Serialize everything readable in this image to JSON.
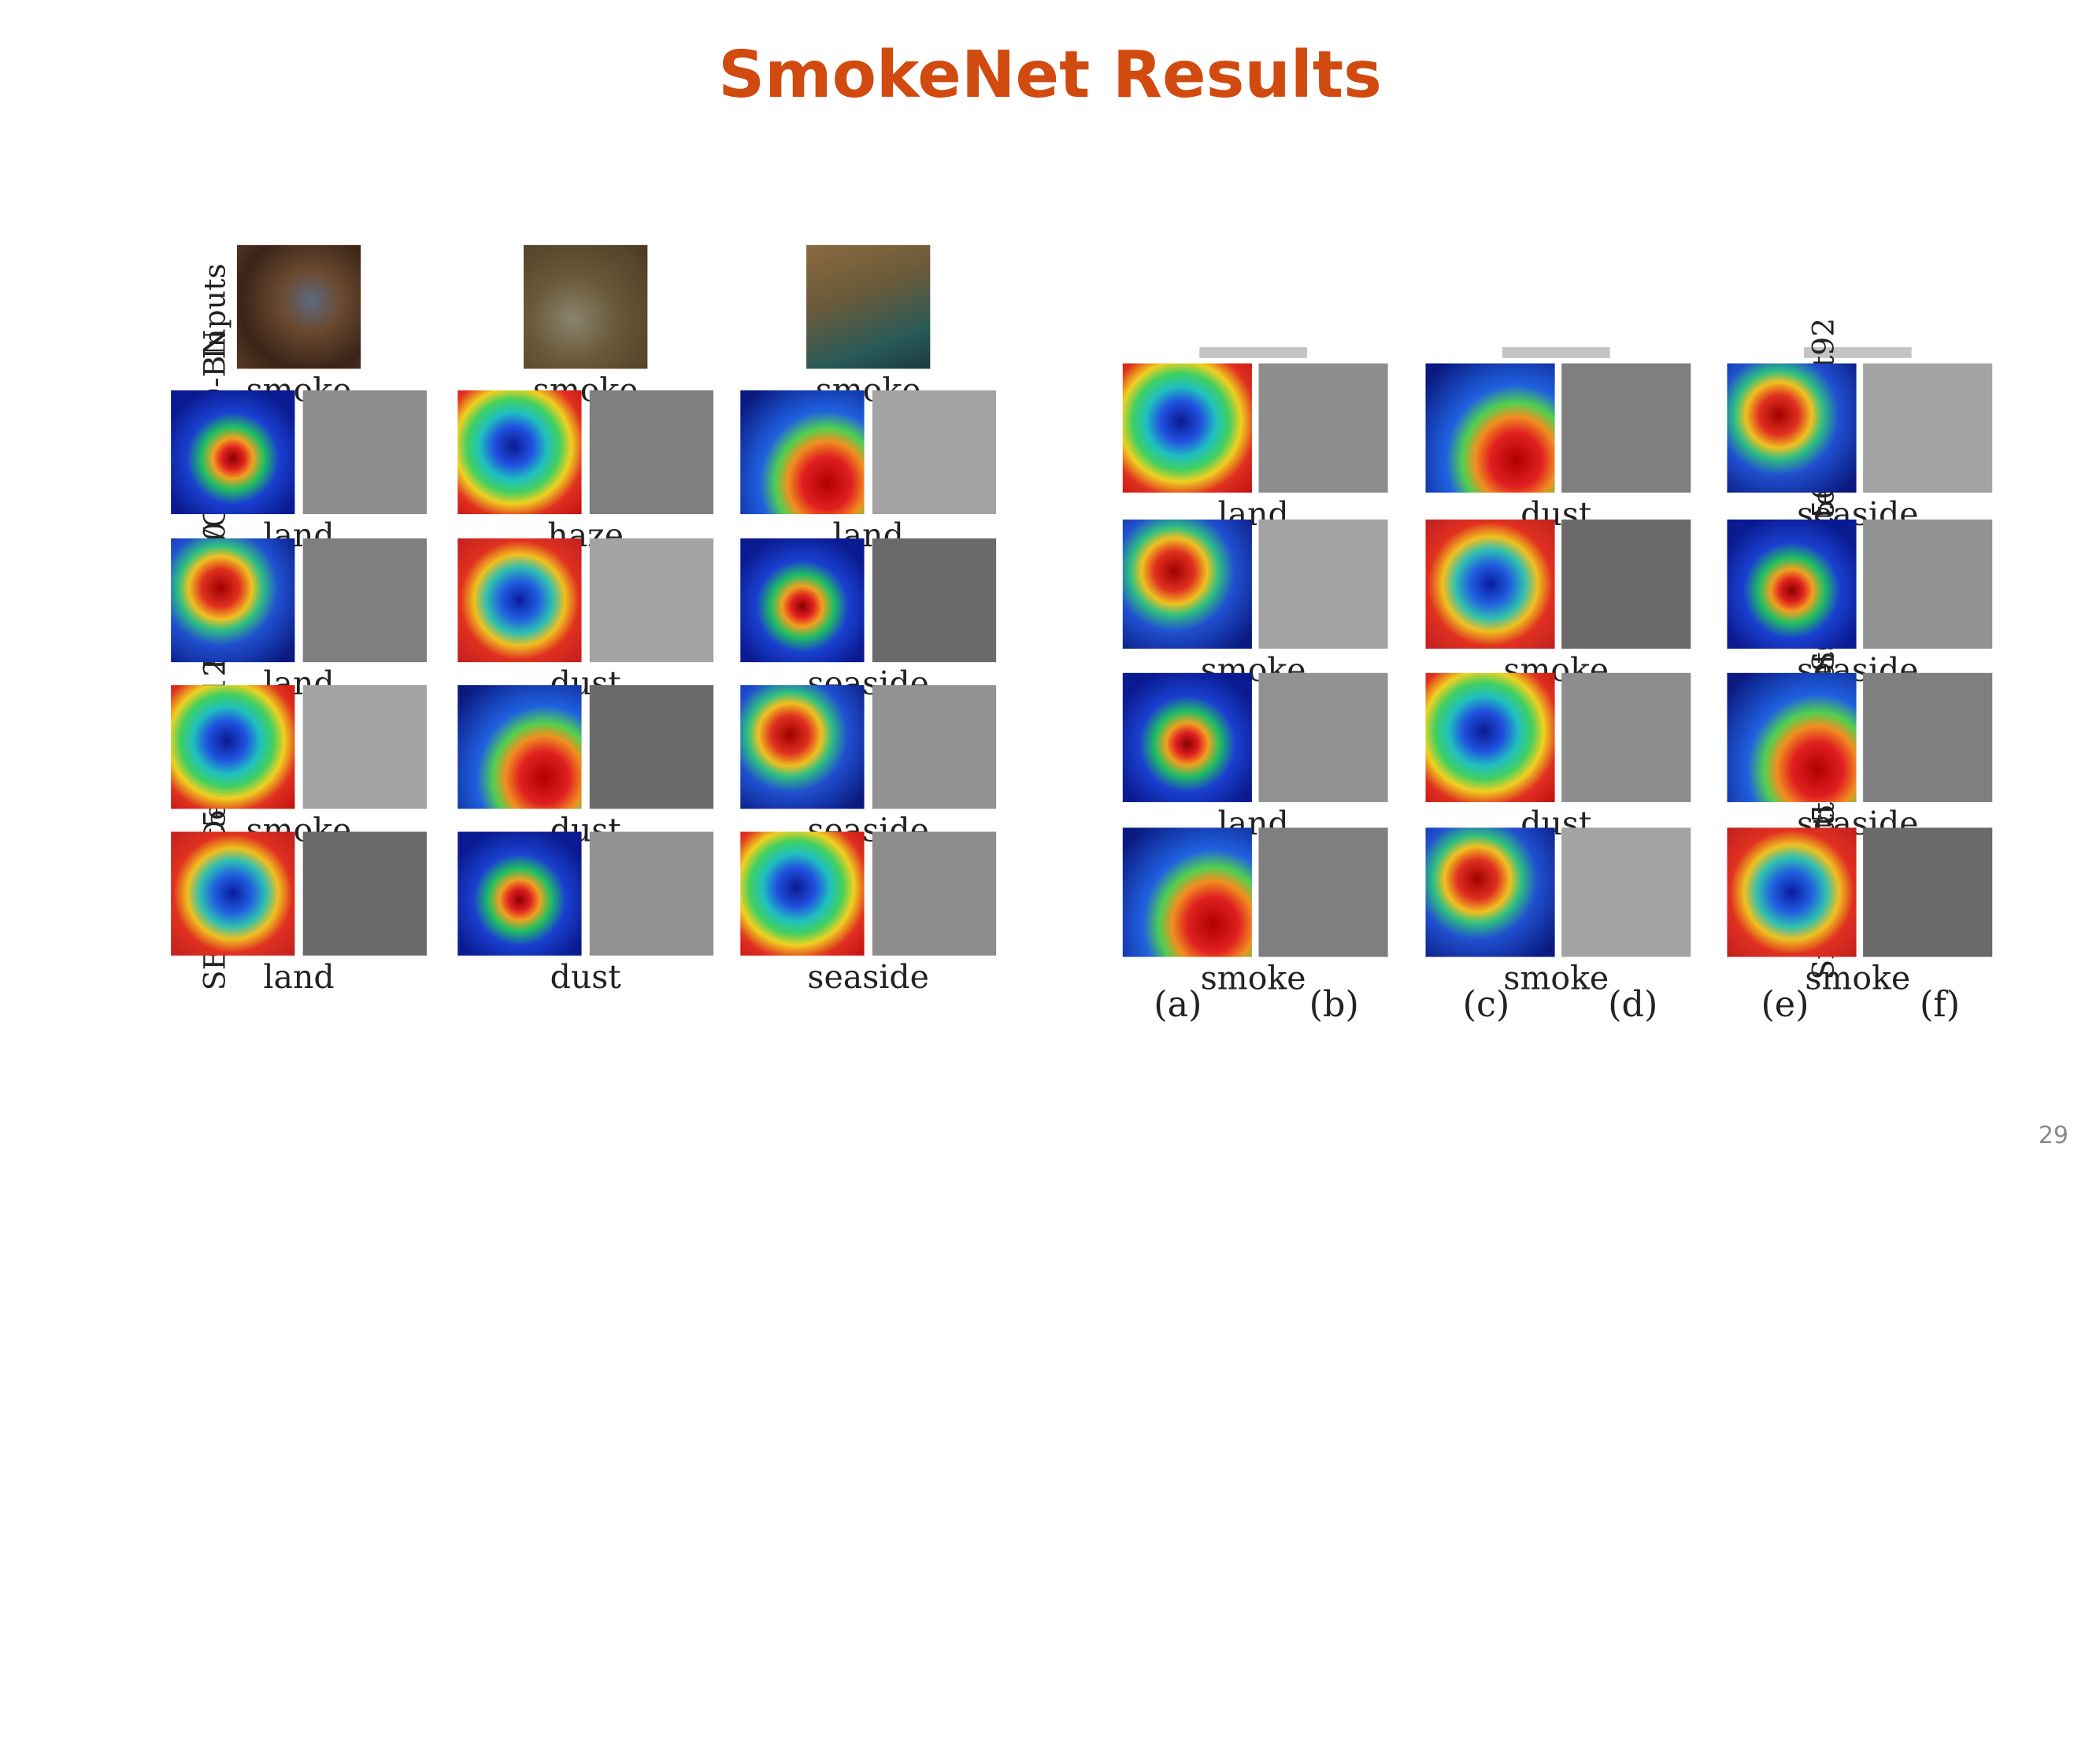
{
  "title": "SmokeNet Results",
  "page_number": "29",
  "left_figure": {
    "row_labels": [
      "Inputs",
      "VGGNet19-BN",
      "ResNet50",
      "DenseNet121",
      "SE-ResNet50"
    ],
    "input_labels": [
      "smoke",
      "smoke",
      "smoke"
    ],
    "rows": [
      [
        "land",
        "haze",
        "land"
      ],
      [
        "land",
        "dust",
        "seaside"
      ],
      [
        "smoke",
        "dust",
        "seaside"
      ],
      [
        "land",
        "dust",
        "seaside"
      ]
    ]
  },
  "right_figure": {
    "row_labels": [
      "AttentionNet92",
      "SCResNet50",
      "CAttentionNet56",
      "SmokeNet56"
    ],
    "rows": [
      [
        "land",
        "dust",
        "seaside"
      ],
      [
        "smoke",
        "smoke",
        "seaside"
      ],
      [
        "land",
        "dust",
        "seaside"
      ],
      [
        "smoke",
        "smoke",
        "smoke"
      ]
    ],
    "column_labels": [
      "(a)",
      "(b)",
      "(c)",
      "(d)",
      "(e)",
      "(f)"
    ]
  },
  "colors": {
    "title": "#d14a10"
  }
}
